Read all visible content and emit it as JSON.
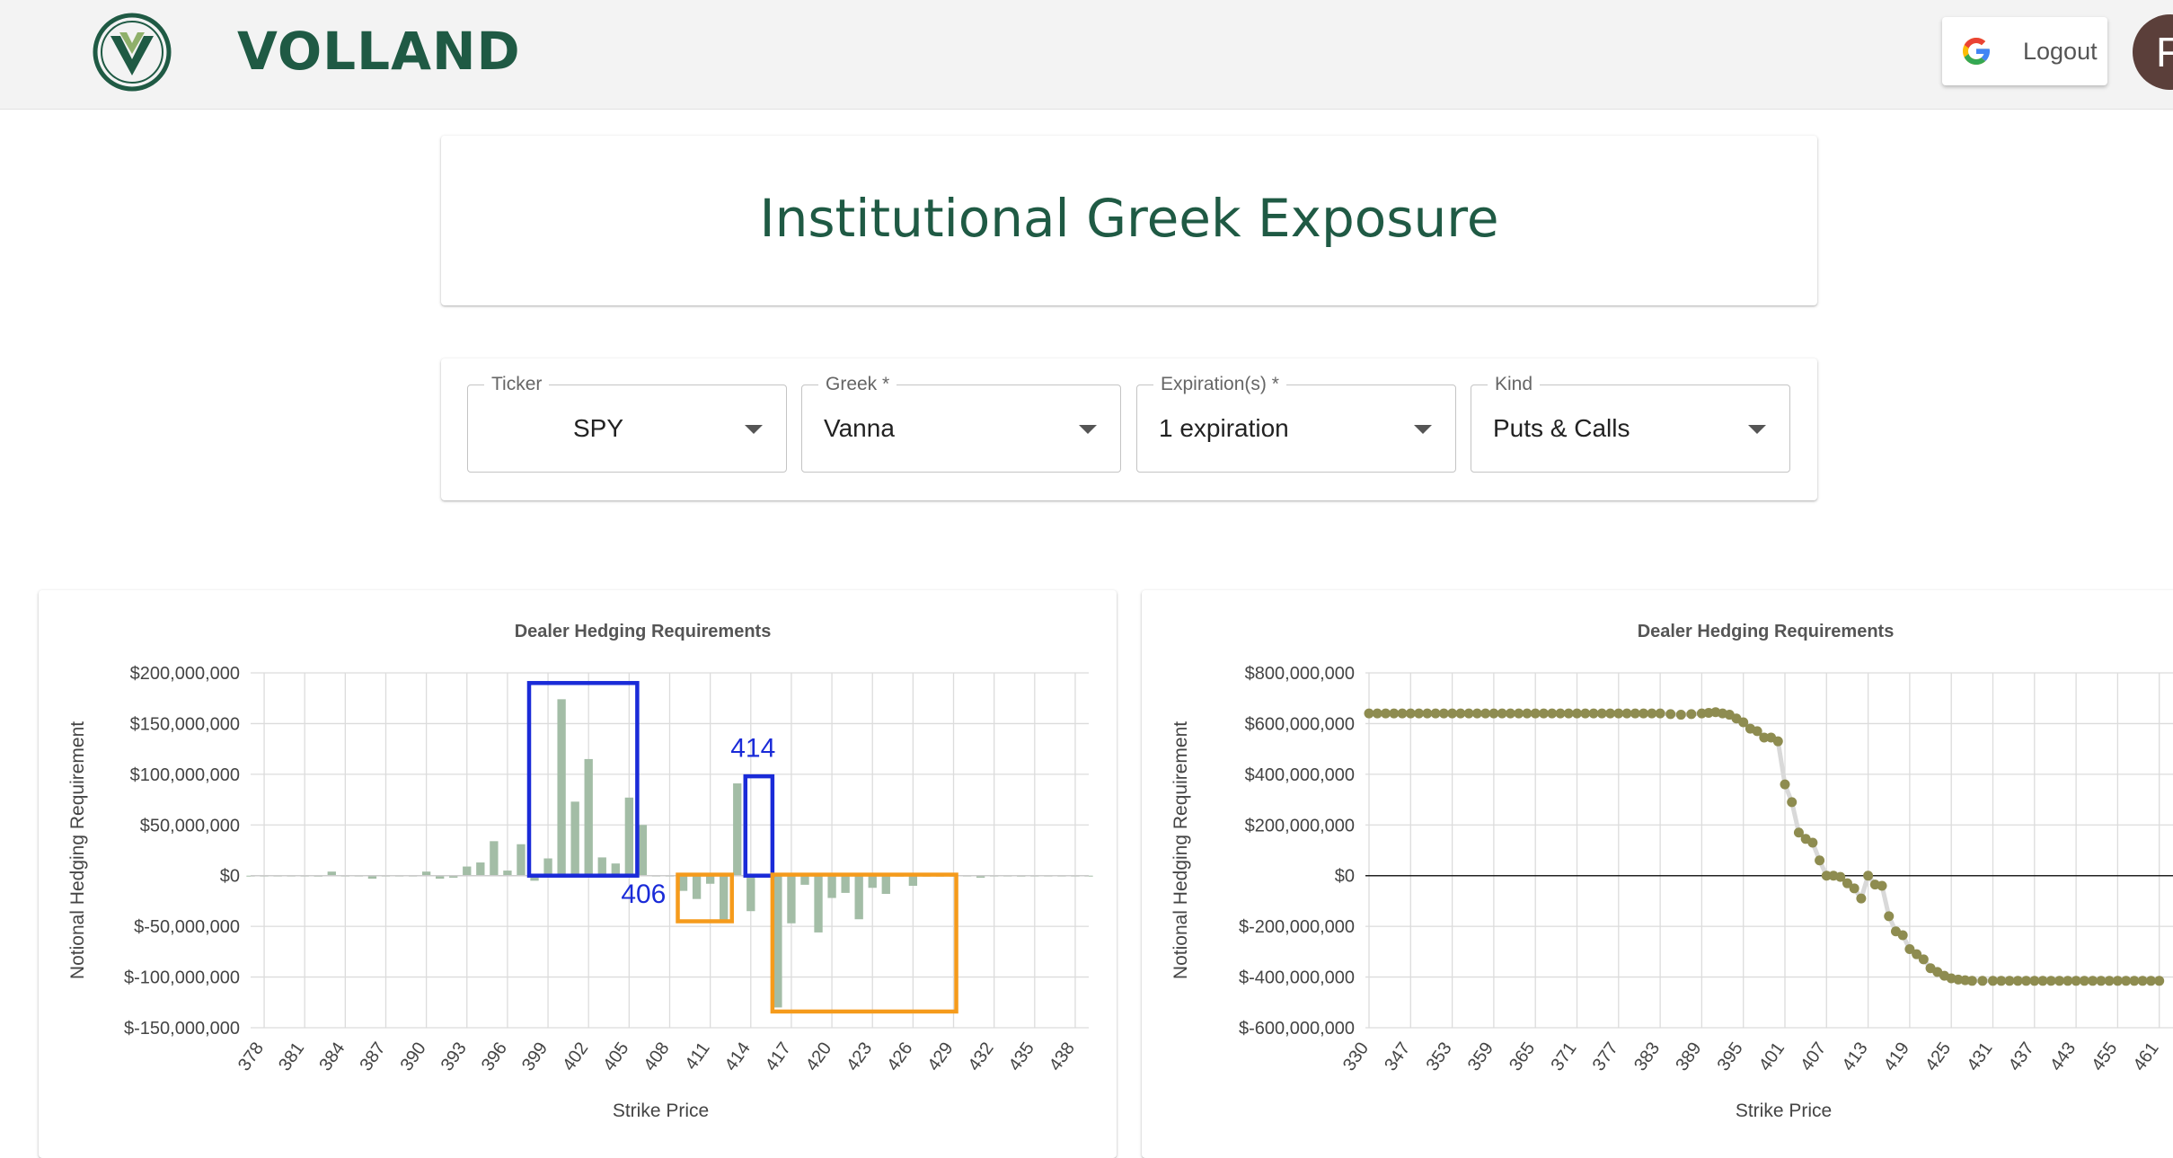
{
  "header": {
    "brand": "VOLLAND",
    "auth_button_label": "Logout",
    "avatar_initial": "F",
    "brand_color": "#1f5a44"
  },
  "page": {
    "title": "Institutional Greek Exposure"
  },
  "filters": {
    "ticker": {
      "label": "Ticker",
      "value": "SPY"
    },
    "greek": {
      "label": "Greek *",
      "value": "Vanna"
    },
    "expiration": {
      "label": "Expiration(s) *",
      "value": "1 expiration"
    },
    "kind": {
      "label": "Kind",
      "value": "Puts & Calls"
    }
  },
  "chart_data": [
    {
      "type": "bar",
      "title": "Dealer Hedging Requirements",
      "xlabel": "Strike Price",
      "ylabel": "Notional Hedging Requirement",
      "ylim": [
        -150000000,
        200000000
      ],
      "y_ticks": [
        "$200,000,000",
        "$150,000,000",
        "$100,000,000",
        "$50,000,000",
        "$0",
        "$-50,000,000",
        "$-100,000,000",
        "$-150,000,000"
      ],
      "x_ticks": [
        "378",
        "381",
        "384",
        "387",
        "390",
        "393",
        "396",
        "399",
        "402",
        "405",
        "408",
        "411",
        "414",
        "417",
        "420",
        "423",
        "426",
        "429",
        "432",
        "435",
        "438"
      ],
      "x": [
        377,
        378,
        379,
        380,
        381,
        382,
        383,
        384,
        385,
        386,
        387,
        388,
        389,
        390,
        391,
        392,
        393,
        394,
        395,
        396,
        397,
        398,
        399,
        400,
        401,
        402,
        403,
        404,
        405,
        406,
        407,
        408,
        409,
        410,
        411,
        412,
        413,
        414,
        415,
        416,
        417,
        418,
        419,
        420,
        421,
        422,
        423,
        424,
        425,
        426,
        427,
        428,
        429,
        430,
        431,
        432,
        433,
        434,
        435,
        436,
        437,
        438,
        439
      ],
      "values": [
        0,
        0,
        0,
        0,
        0,
        -1000000,
        4000000,
        0,
        0,
        -3000000,
        0,
        0,
        0,
        4000000,
        -3000000,
        -2000000,
        9000000,
        13000000,
        34000000,
        5000000,
        31000000,
        -5000000,
        17000000,
        174000000,
        73000000,
        115000000,
        18000000,
        12000000,
        77000000,
        50000000,
        0,
        0,
        -15000000,
        -23000000,
        -8000000,
        -45000000,
        91000000,
        -35000000,
        0,
        -130000000,
        -47000000,
        -9000000,
        -56000000,
        -22000000,
        -17000000,
        -43000000,
        -12000000,
        -18000000,
        0,
        -10000000,
        0,
        0,
        0,
        0,
        -2000000,
        0,
        0,
        -1000000,
        0,
        0,
        0,
        0,
        0
      ],
      "bar_color": "#a3bda6",
      "annotations": [
        {
          "text": "406",
          "color": "#1a2bd8"
        },
        {
          "text": "414",
          "color": "#1a2bd8"
        }
      ],
      "highlight_colors": {
        "positive": "#1a2bd8",
        "negative": "#f59b1c"
      }
    },
    {
      "type": "line",
      "title": "Dealer Hedging Requirements",
      "xlabel": "Strike Price",
      "ylabel": "Notional Hedging Requirement",
      "ylim": [
        -600000000,
        800000000
      ],
      "y_ticks": [
        "$800,000,000",
        "$600,000,000",
        "$400,000,000",
        "$200,000,000",
        "$0",
        "$-200,000,000",
        "$-400,000,000",
        "$-600,000,000"
      ],
      "x_ticks": [
        "330",
        "347",
        "353",
        "359",
        "365",
        "371",
        "377",
        "383",
        "389",
        "395",
        "401",
        "407",
        "413",
        "419",
        "425",
        "431",
        "437",
        "443",
        "455",
        "461"
      ],
      "x": [
        330,
        347,
        353,
        359,
        365,
        371,
        377,
        383,
        386,
        389,
        391,
        393,
        395,
        396,
        397,
        398,
        399,
        400,
        401,
        402,
        403,
        404,
        405,
        406,
        407,
        408,
        409,
        410,
        411,
        412,
        413,
        414,
        415,
        416,
        417,
        418,
        419,
        420,
        421,
        422,
        423,
        424,
        425,
        426,
        428,
        431,
        437,
        443,
        455,
        461
      ],
      "values": [
        640000000,
        640000000,
        640000000,
        640000000,
        640000000,
        640000000,
        640000000,
        640000000,
        635000000,
        640000000,
        645000000,
        635000000,
        605000000,
        580000000,
        570000000,
        545000000,
        545000000,
        530000000,
        360000000,
        290000000,
        170000000,
        145000000,
        130000000,
        60000000,
        0,
        0,
        -5000000,
        -30000000,
        -50000000,
        -90000000,
        0,
        -35000000,
        -40000000,
        -160000000,
        -220000000,
        -235000000,
        -290000000,
        -310000000,
        -330000000,
        -365000000,
        -380000000,
        -395000000,
        -405000000,
        -410000000,
        -415000000,
        -415000000,
        -415000000,
        -415000000,
        -415000000,
        -415000000
      ],
      "point_color": "#8e8c50",
      "grid": true
    }
  ]
}
